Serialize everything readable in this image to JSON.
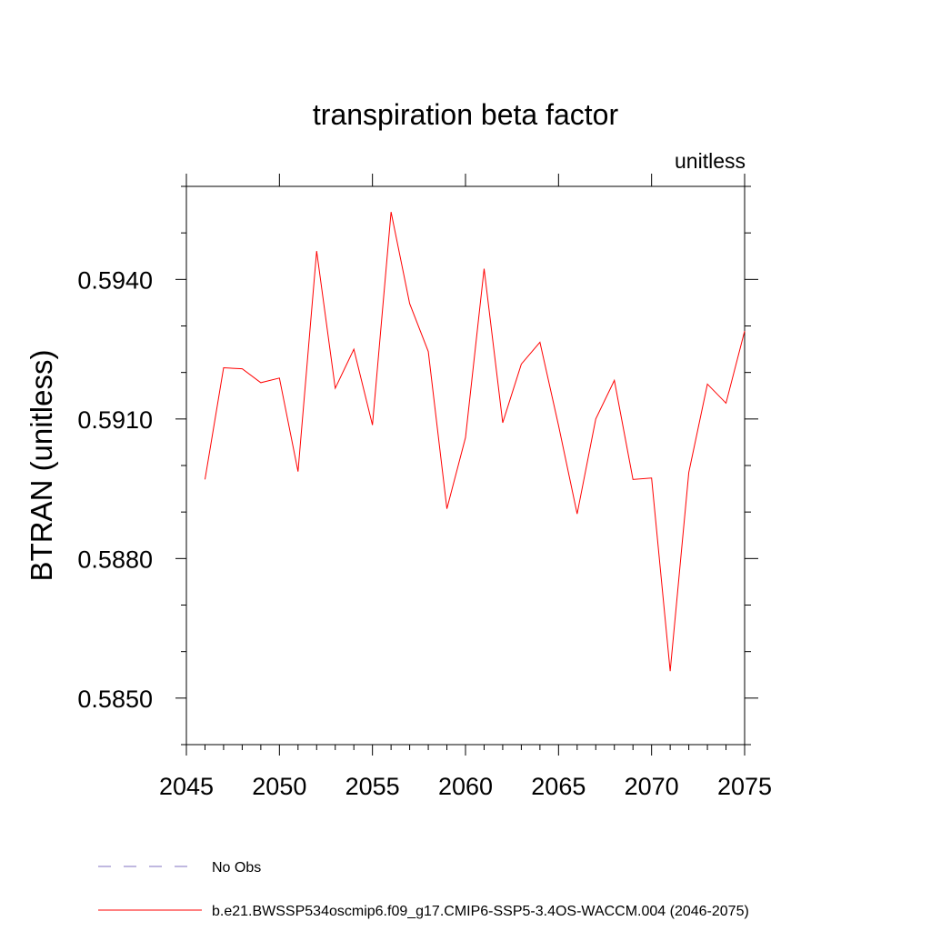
{
  "chart_data": {
    "type": "line",
    "title": "transpiration beta factor",
    "units_label": "unitless",
    "xlabel": "",
    "ylabel": "BTRAN  (unitless)",
    "xlim": [
      2045,
      2075
    ],
    "ylim": [
      0.584,
      0.596
    ],
    "xticks": [
      2045,
      2050,
      2055,
      2060,
      2065,
      2070,
      2075
    ],
    "xtick_labels": [
      "2045",
      "2050",
      "2055",
      "2060",
      "2065",
      "2070",
      "2075"
    ],
    "yticks": [
      0.585,
      0.588,
      0.591,
      0.594
    ],
    "ytick_labels": [
      "0.5850",
      "0.5880",
      "0.5910",
      "0.5940"
    ],
    "y_minor_step": 0.001,
    "x_minor_step": 1,
    "grid": false,
    "legend_position": "bottom-left",
    "series": [
      {
        "name": "b.e21.BWSSP534oscmip6.f09_g17.CMIP6-SSP5-3.4OS-WACCM.004 (2046-2075)",
        "color": "#ff0000",
        "style": "solid",
        "x": [
          2046,
          2047,
          2048,
          2049,
          2050,
          2051,
          2052,
          2053,
          2054,
          2055,
          2056,
          2057,
          2058,
          2059,
          2060,
          2061,
          2062,
          2063,
          2064,
          2065,
          2066,
          2067,
          2068,
          2069,
          2070,
          2071,
          2072,
          2073,
          2074,
          2075
        ],
        "values": [
          0.5897,
          0.5921,
          0.59208,
          0.59178,
          0.59188,
          0.58987,
          0.59461,
          0.59166,
          0.5925,
          0.59087,
          0.59545,
          0.59348,
          0.59245,
          0.58907,
          0.5906,
          0.59423,
          0.59092,
          0.59218,
          0.59265,
          0.59086,
          0.58896,
          0.591,
          0.59183,
          0.5897,
          0.58973,
          0.58558,
          0.58985,
          0.59175,
          0.59134,
          0.59289
        ]
      }
    ],
    "reference": {
      "name": "No Obs",
      "color": "#8070c0",
      "style": "dashed"
    }
  }
}
